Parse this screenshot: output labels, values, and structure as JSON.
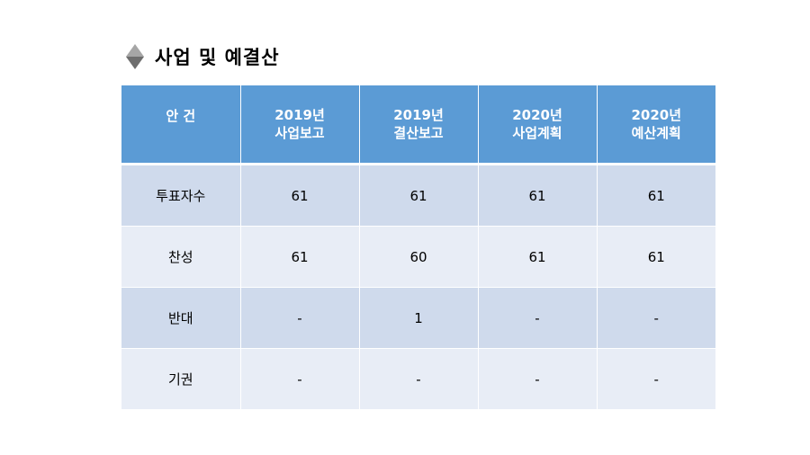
{
  "title": "사업 및 예결산",
  "icons": {
    "title_marker": "diamond-icon"
  },
  "colors": {
    "header_bg": "#5b9bd5",
    "row_dark": "#cfdaec",
    "row_light": "#e8edf6",
    "diamond_top": "#a6a6a6",
    "diamond_bottom": "#6e6e6e"
  },
  "table": {
    "corner": "안 건",
    "columns": [
      {
        "line1": "2019년",
        "line2": "사업보고"
      },
      {
        "line1": "2019년",
        "line2": "결산보고"
      },
      {
        "line1": "2020년",
        "line2": "사업계획"
      },
      {
        "line1": "2020년",
        "line2": "예산계획"
      }
    ],
    "rows": [
      {
        "label": "투표자수",
        "cells": [
          "61",
          "61",
          "61",
          "61"
        ]
      },
      {
        "label": "찬성",
        "cells": [
          "61",
          "60",
          "61",
          "61"
        ]
      },
      {
        "label": "반대",
        "cells": [
          "-",
          "1",
          "-",
          "-"
        ]
      },
      {
        "label": "기권",
        "cells": [
          "-",
          "-",
          "-",
          "-"
        ]
      }
    ]
  }
}
